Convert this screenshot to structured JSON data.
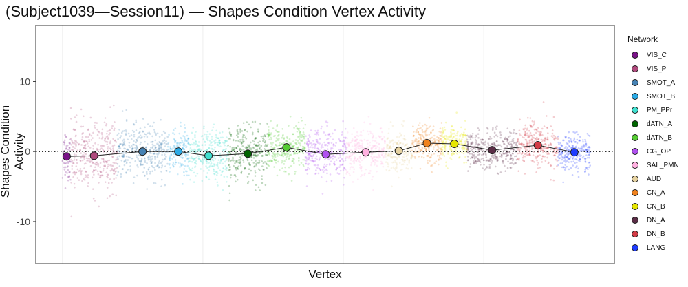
{
  "chart_data": {
    "type": "scatter",
    "title": "(Subject1039—Session11) — Shapes Condition Vertex Activity",
    "xlabel": "Vertex",
    "ylabel": "Shapes Condition Activity",
    "ylim": [
      -16,
      18
    ],
    "xlim": [
      -19,
      393
    ],
    "yticks": [
      10,
      0,
      -10
    ],
    "ytick_labels": [
      "10",
      "0",
      "-10"
    ],
    "x_gridlines": [
      0,
      100,
      200,
      300
    ],
    "reference_line_y": 0,
    "legend": {
      "title": "Network",
      "placement": "right"
    },
    "groups": [
      {
        "name": "VIS_C",
        "color": "#781286",
        "x_range": [
          0,
          6
        ],
        "mean": -0.7,
        "spread": 3.0
      },
      {
        "name": "VIS_P",
        "color": "#b04a7d",
        "x_range": [
          6,
          39
        ],
        "mean": -0.6,
        "spread": 4.0
      },
      {
        "name": "SMOT_A",
        "color": "#4682b4",
        "x_range": [
          39,
          75
        ],
        "mean": 0.0,
        "spread": 3.0
      },
      {
        "name": "SMOT_B",
        "color": "#2aaae6",
        "x_range": [
          75,
          90
        ],
        "mean": 0.0,
        "spread": 2.6
      },
      {
        "name": "PM_PPr",
        "color": "#40e0d0",
        "x_range": [
          90,
          118
        ],
        "mean": -0.6,
        "spread": 3.0
      },
      {
        "name": "dATN_A",
        "color": "#006400",
        "x_range": [
          118,
          146
        ],
        "mean": -0.3,
        "spread": 3.2
      },
      {
        "name": "dATN_B",
        "color": "#55cc33",
        "x_range": [
          146,
          173
        ],
        "mean": 0.6,
        "spread": 2.6
      },
      {
        "name": "CG_OP",
        "color": "#b050f0",
        "x_range": [
          173,
          202
        ],
        "mean": -0.4,
        "spread": 3.0
      },
      {
        "name": "SAL_PMN",
        "color": "#ffb0e0",
        "x_range": [
          202,
          230
        ],
        "mean": -0.1,
        "spread": 2.6
      },
      {
        "name": "AUD",
        "color": "#e6d2a0",
        "x_range": [
          230,
          249
        ],
        "mean": 0.1,
        "spread": 2.4
      },
      {
        "name": "CN_A",
        "color": "#f0821e",
        "x_range": [
          249,
          270
        ],
        "mean": 1.2,
        "spread": 2.2
      },
      {
        "name": "CN_B",
        "color": "#e6e600",
        "x_range": [
          270,
          288
        ],
        "mean": 1.1,
        "spread": 2.0
      },
      {
        "name": "DN_A",
        "color": "#5a2d46",
        "x_range": [
          288,
          324
        ],
        "mean": 0.2,
        "spread": 2.2
      },
      {
        "name": "DN_B",
        "color": "#d23c46",
        "x_range": [
          324,
          353
        ],
        "mean": 0.9,
        "spread": 2.6
      },
      {
        "name": "LANG",
        "color": "#1e3cff",
        "x_range": [
          353,
          376
        ],
        "mean": -0.1,
        "spread": 2.2
      }
    ]
  }
}
